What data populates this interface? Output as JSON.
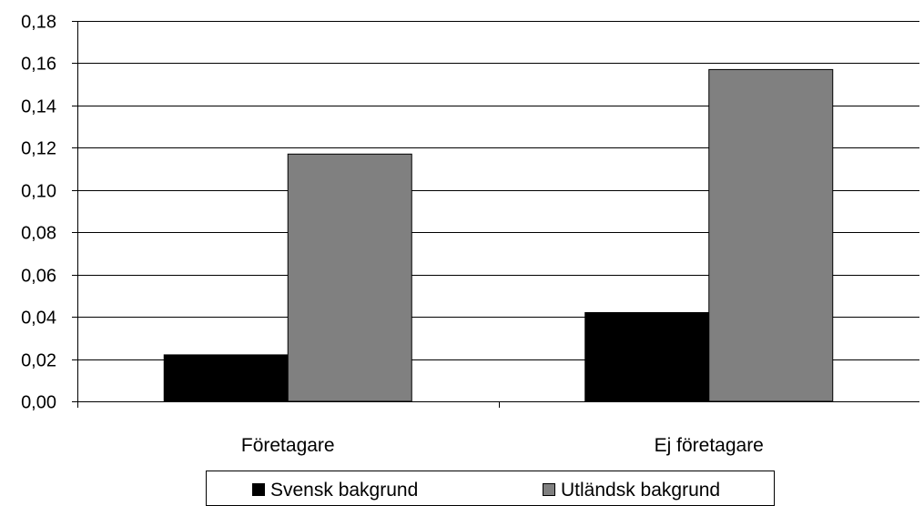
{
  "chart_data": {
    "type": "bar",
    "title": "",
    "xlabel": "",
    "ylabel": "",
    "categories": [
      "Företagare",
      "Ej företagare"
    ],
    "series": [
      {
        "name": "Svensk bakgrund",
        "values": [
          0.022,
          0.042
        ],
        "color": "#000000"
      },
      {
        "name": "Utländsk bakgrund",
        "values": [
          0.117,
          0.157
        ],
        "color": "#808080"
      }
    ],
    "ylim": [
      0,
      0.18
    ],
    "yticks": [
      "0,00",
      "0,02",
      "0,04",
      "0,06",
      "0,08",
      "0,10",
      "0,12",
      "0,14",
      "0,16",
      "0,18"
    ],
    "grid": true,
    "legend_position": "bottom"
  }
}
